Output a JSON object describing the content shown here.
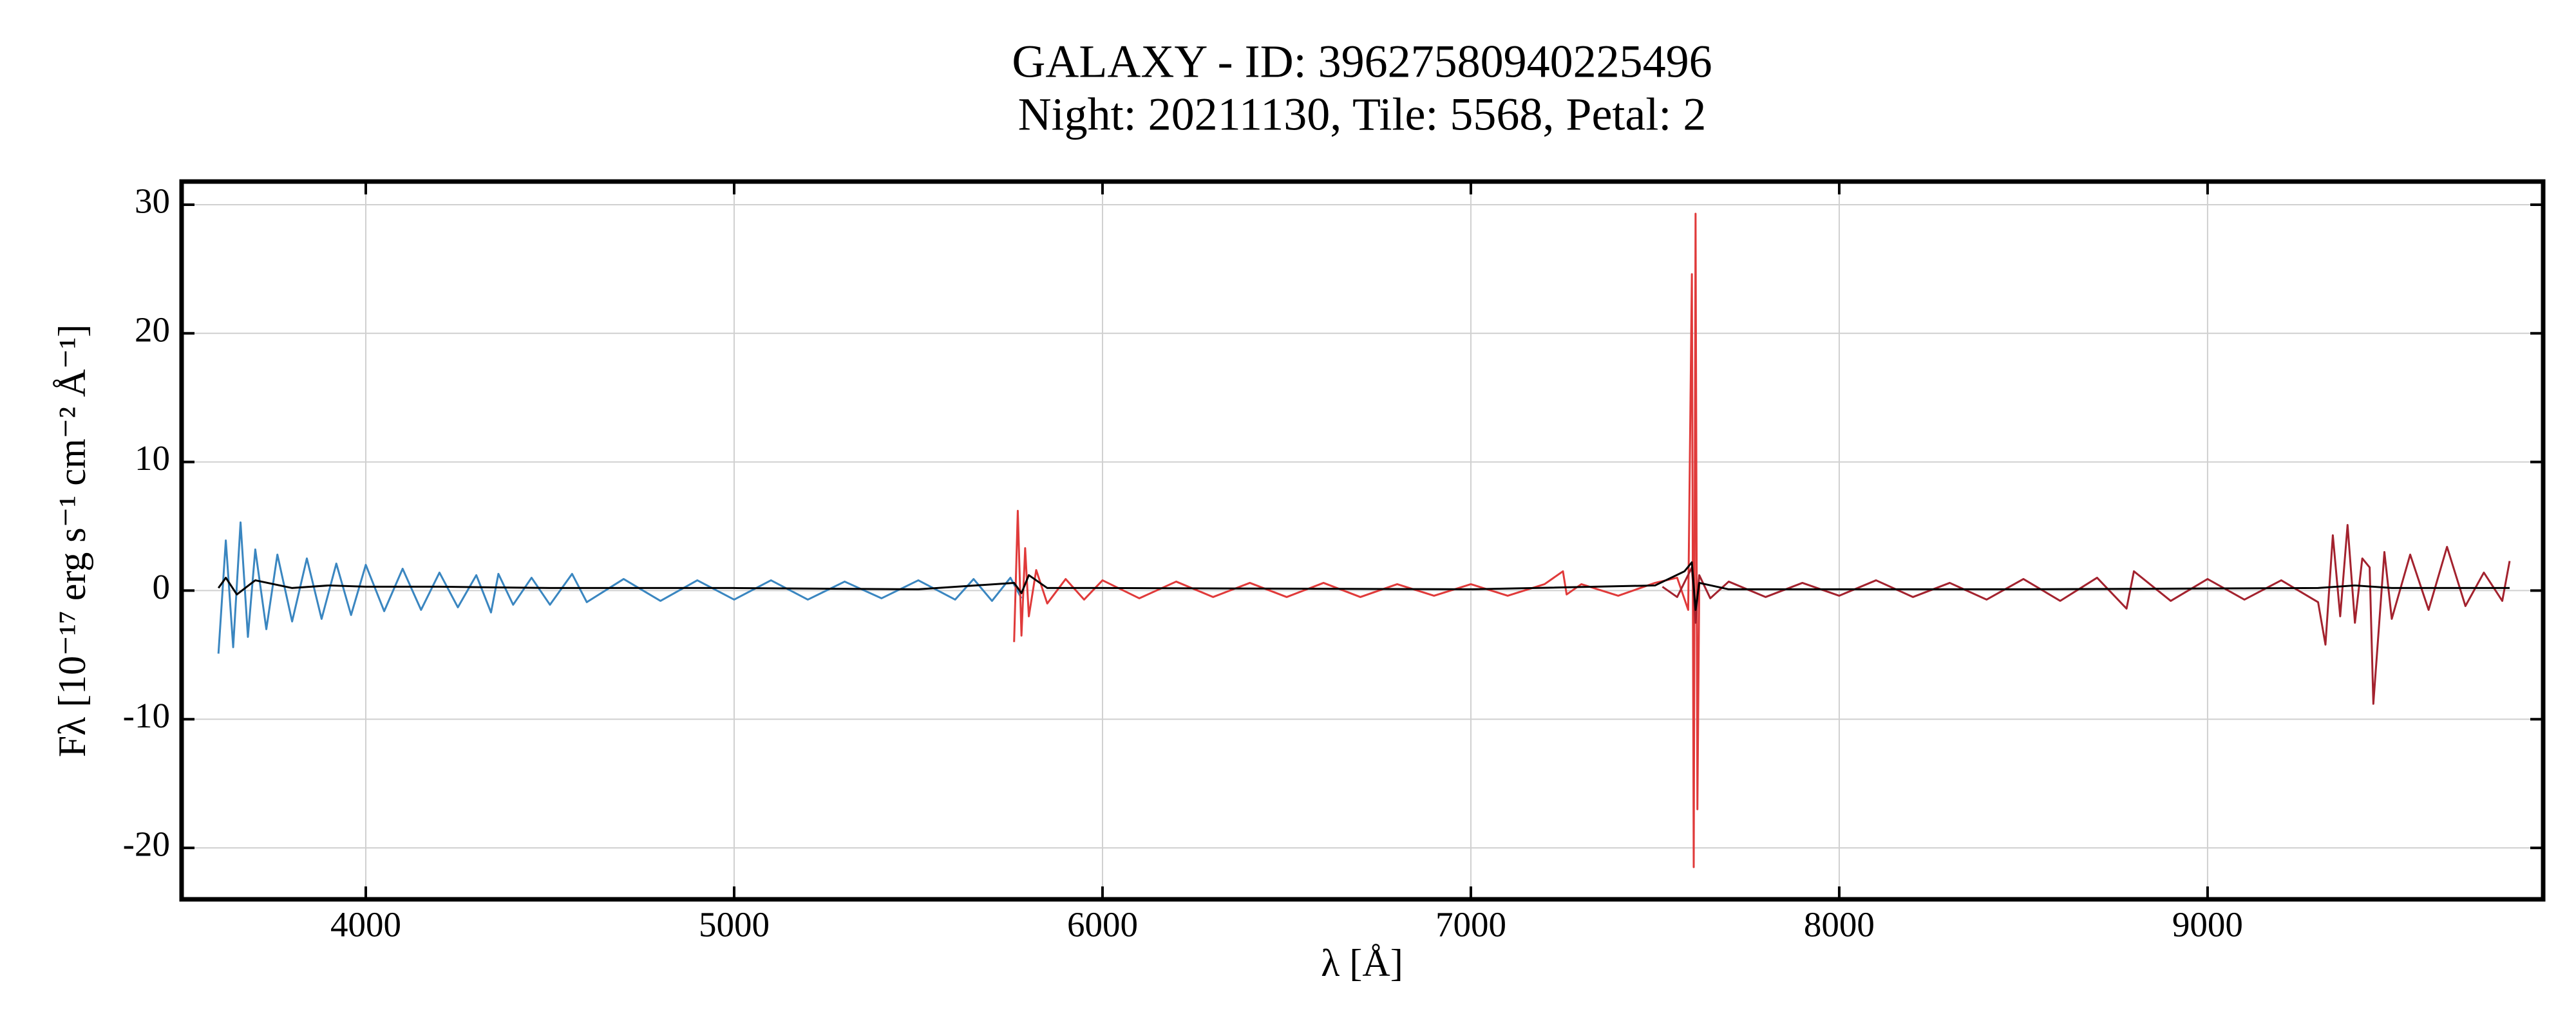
{
  "chart_data": {
    "type": "line",
    "title": "GALAXY - ID: 39627580940225496",
    "subtitle": "Night: 20211130, Tile: 5568, Petal: 2",
    "x_label": "λ [Å]",
    "y_label": "Fλ [10⁻¹⁷ erg s⁻¹ cm⁻² Å⁻¹]",
    "xlim": [
      3500,
      9911
    ],
    "ylim": [
      -24,
      31.8
    ],
    "xticks": [
      4000,
      5000,
      6000,
      7000,
      8000,
      9000
    ],
    "yticks": [
      -20,
      -10,
      0,
      10,
      20,
      30
    ],
    "grid": true,
    "series": [
      {
        "color": "#3a86c0",
        "x": [
          3600,
          3620,
          3640,
          3660,
          3680,
          3700,
          3730,
          3760,
          3800,
          3840,
          3880,
          3920,
          3960,
          4000,
          4050,
          4100,
          4150,
          4200,
          4250,
          4300,
          4340,
          4360,
          4400,
          4450,
          4500,
          4560,
          4600,
          4700,
          4800,
          4900,
          5000,
          5100,
          5200,
          5300,
          5400,
          5500,
          5600,
          5650,
          5700,
          5750,
          5780
        ],
        "values": [
          -4.9,
          3.9,
          -4.4,
          5.3,
          -3.6,
          3.2,
          -3.0,
          2.8,
          -2.4,
          2.5,
          -2.2,
          2.1,
          -1.9,
          2.0,
          -1.6,
          1.7,
          -1.5,
          1.4,
          -1.3,
          1.2,
          -1.7,
          1.3,
          -1.1,
          1.0,
          -1.1,
          1.3,
          -0.9,
          0.9,
          -0.8,
          0.8,
          -0.7,
          0.8,
          -0.7,
          0.7,
          -0.6,
          0.8,
          -0.7,
          0.9,
          -0.8,
          1.0,
          -0.6
        ]
      },
      {
        "color": "#e03a3a",
        "x": [
          5760,
          5770,
          5780,
          5790,
          5800,
          5820,
          5850,
          5900,
          5950,
          6000,
          6100,
          6200,
          6300,
          6400,
          6500,
          6600,
          6700,
          6800,
          6900,
          7000,
          7100,
          7200,
          7250,
          7260,
          7300,
          7400,
          7500,
          7560,
          7590,
          7600,
          7605,
          7610,
          7615,
          7620
        ],
        "values": [
          -4.0,
          6.2,
          -3.5,
          3.3,
          -2.0,
          1.6,
          -1.0,
          0.9,
          -0.7,
          0.8,
          -0.6,
          0.7,
          -0.5,
          0.6,
          -0.5,
          0.6,
          -0.5,
          0.5,
          -0.4,
          0.5,
          -0.4,
          0.5,
          1.5,
          -0.3,
          0.5,
          -0.4,
          0.6,
          1.0,
          -1.5,
          24.6,
          -21.5,
          29.3,
          -17.0,
          0.5
        ]
      },
      {
        "color": "#a3222e",
        "x": [
          7520,
          7560,
          7600,
          7610,
          7620,
          7650,
          7700,
          7800,
          7900,
          8000,
          8100,
          8200,
          8300,
          8400,
          8500,
          8600,
          8700,
          8780,
          8800,
          8900,
          9000,
          9100,
          9200,
          9300,
          9320,
          9340,
          9360,
          9380,
          9400,
          9420,
          9440,
          9450,
          9480,
          9500,
          9550,
          9600,
          9650,
          9700,
          9750,
          9800,
          9820
        ],
        "values": [
          0.3,
          -0.5,
          1.8,
          -2.5,
          1.2,
          -0.6,
          0.7,
          -0.5,
          0.6,
          -0.4,
          0.8,
          -0.5,
          0.6,
          -0.7,
          0.9,
          -0.8,
          1.0,
          -1.4,
          1.5,
          -0.8,
          0.9,
          -0.7,
          0.8,
          -0.9,
          -4.2,
          4.3,
          -2.0,
          5.1,
          -2.5,
          2.5,
          1.8,
          -8.8,
          3.0,
          -2.2,
          2.8,
          -1.5,
          3.4,
          -1.2,
          1.4,
          -0.8,
          2.3
        ]
      },
      {
        "color": "#000000",
        "x": [
          3600,
          3620,
          3650,
          3700,
          3800,
          3900,
          4000,
          4200,
          4500,
          5000,
          5500,
          5760,
          5780,
          5800,
          5850,
          6000,
          7000,
          7500,
          7580,
          7600,
          7610,
          7620,
          7700,
          8500,
          9300,
          9400,
          9500,
          9820
        ],
        "values": [
          0.2,
          1.0,
          -0.3,
          0.8,
          0.2,
          0.4,
          0.3,
          0.3,
          0.2,
          0.2,
          0.1,
          0.6,
          -0.2,
          1.2,
          0.2,
          0.2,
          0.1,
          0.4,
          1.5,
          2.2,
          -1.5,
          0.6,
          0.1,
          0.1,
          0.2,
          0.4,
          0.2,
          0.2
        ]
      }
    ]
  }
}
